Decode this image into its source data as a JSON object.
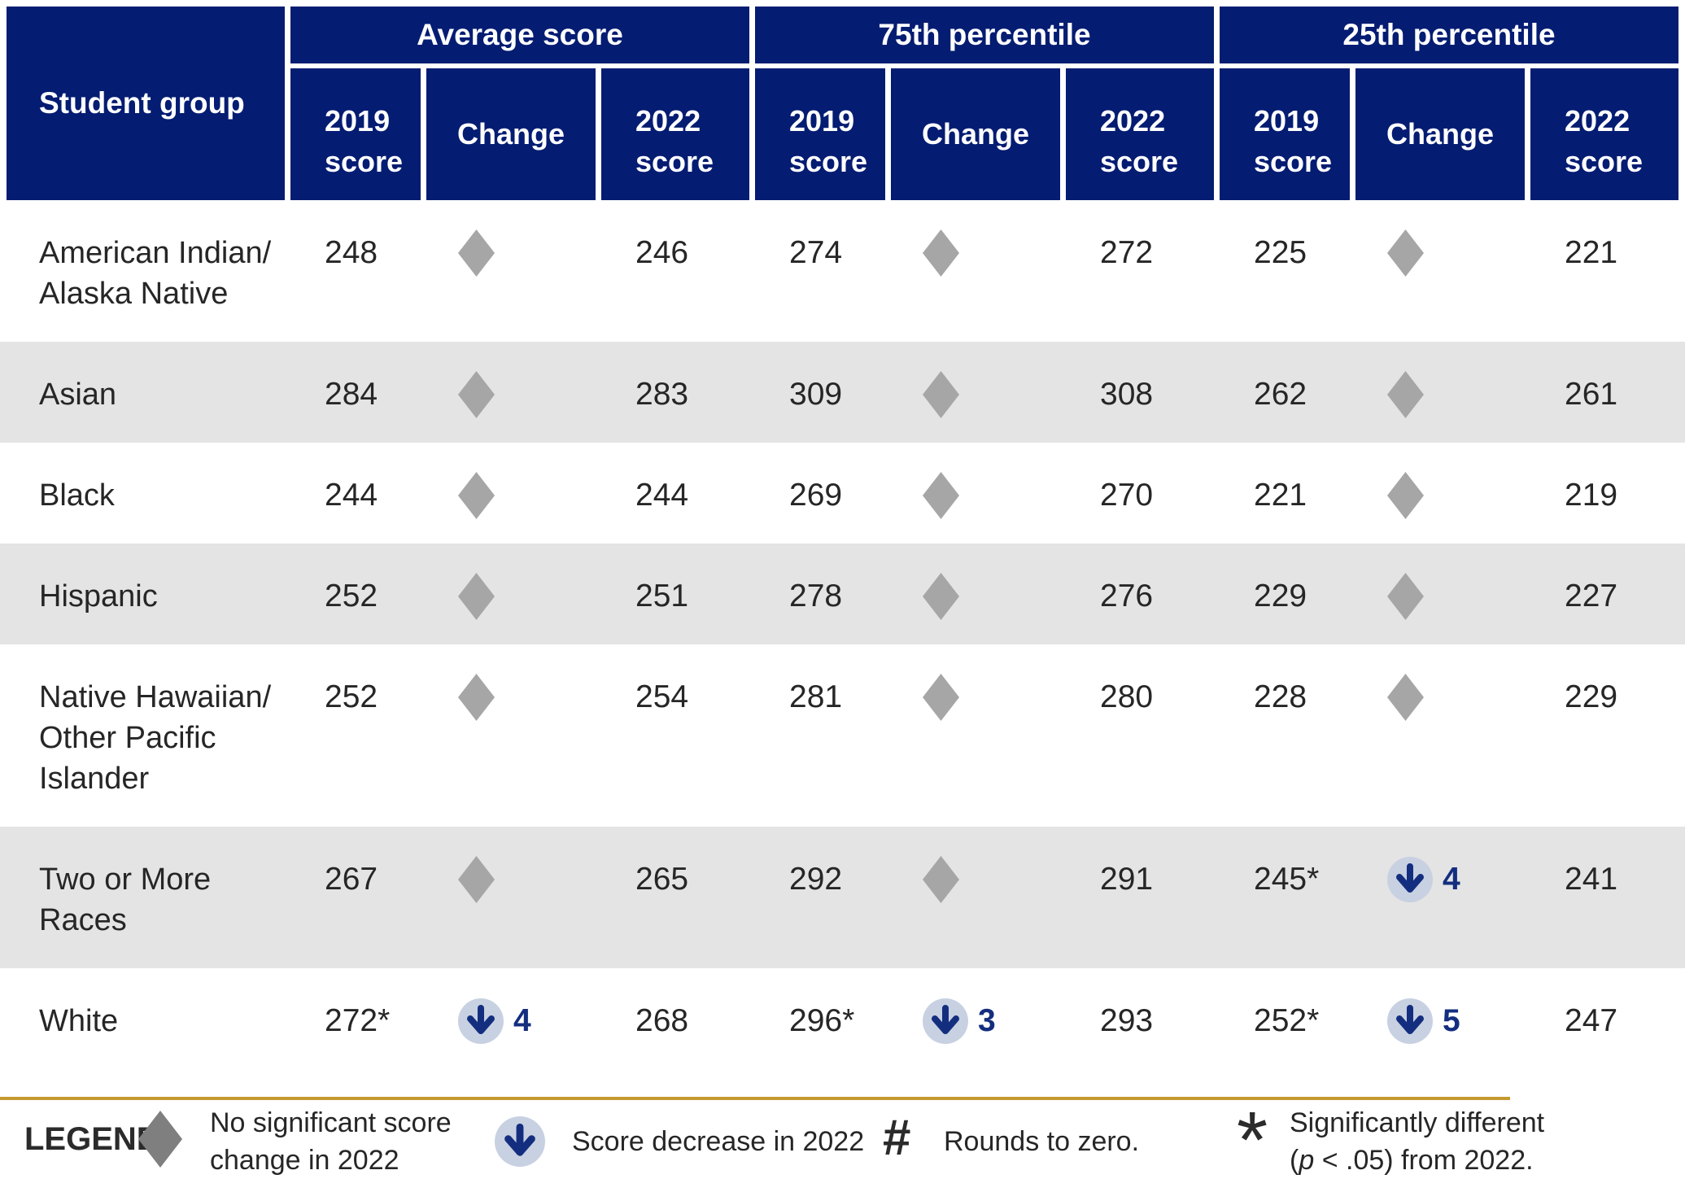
{
  "colors": {
    "header_navy": "#041c72",
    "row_alt_gray": "#e4e4e4",
    "diamond_gray": "#a6a6a6",
    "legend_diamond_gray": "#7f7f7f",
    "arrow_circle_blue": "#c8d1e2",
    "arrow_navy": "#142e7f",
    "gold_rule": "#c49a30",
    "text": "#262626"
  },
  "chart_data": {
    "type": "table",
    "row_header": "Student group",
    "column_groups": [
      "Average score",
      "75th percentile",
      "25th percentile"
    ],
    "sub_columns": [
      "2019 score",
      "Change",
      "2022 score"
    ],
    "change_encoding": "null = no significant change (gray diamond); negative integer = score decrease in 2022 (blue down arrow with magnitude)",
    "rows": [
      {
        "group": "American Indian/\nAlaska Native",
        "average": {
          "score_2019": "248",
          "change": null,
          "score_2022": "246"
        },
        "p75": {
          "score_2019": "274",
          "change": null,
          "score_2022": "272"
        },
        "p25": {
          "score_2019": "225",
          "change": null,
          "score_2022": "221"
        }
      },
      {
        "group": "Asian",
        "average": {
          "score_2019": "284",
          "change": null,
          "score_2022": "283"
        },
        "p75": {
          "score_2019": "309",
          "change": null,
          "score_2022": "308"
        },
        "p25": {
          "score_2019": "262",
          "change": null,
          "score_2022": "261"
        }
      },
      {
        "group": "Black",
        "average": {
          "score_2019": "244",
          "change": null,
          "score_2022": "244"
        },
        "p75": {
          "score_2019": "269",
          "change": null,
          "score_2022": "270"
        },
        "p25": {
          "score_2019": "221",
          "change": null,
          "score_2022": "219"
        }
      },
      {
        "group": "Hispanic",
        "average": {
          "score_2019": "252",
          "change": null,
          "score_2022": "251"
        },
        "p75": {
          "score_2019": "278",
          "change": null,
          "score_2022": "276"
        },
        "p25": {
          "score_2019": "229",
          "change": null,
          "score_2022": "227"
        }
      },
      {
        "group": "Native Hawaiian/\nOther Pacific\nIslander",
        "average": {
          "score_2019": "252",
          "change": null,
          "score_2022": "254"
        },
        "p75": {
          "score_2019": "281",
          "change": null,
          "score_2022": "280"
        },
        "p25": {
          "score_2019": "228",
          "change": null,
          "score_2022": "229"
        }
      },
      {
        "group": "Two or More\nRaces",
        "average": {
          "score_2019": "267",
          "change": null,
          "score_2022": "265"
        },
        "p75": {
          "score_2019": "292",
          "change": null,
          "score_2022": "291"
        },
        "p25": {
          "score_2019": "245*",
          "change": -4,
          "score_2022": "241"
        }
      },
      {
        "group": "White",
        "average": {
          "score_2019": "272*",
          "change": -4,
          "score_2022": "268"
        },
        "p75": {
          "score_2019": "296*",
          "change": -3,
          "score_2022": "293"
        },
        "p25": {
          "score_2019": "252*",
          "change": -5,
          "score_2022": "247"
        }
      }
    ]
  },
  "legend": {
    "title": "LEGEND",
    "items": [
      {
        "icon": "diamond",
        "text": "No significant score\nchange in 2022"
      },
      {
        "icon": "down-arrow",
        "text": "Score decrease in 2022"
      },
      {
        "icon": "hash",
        "symbol": "#",
        "text": "Rounds to zero."
      },
      {
        "icon": "asterisk",
        "symbol": "*",
        "line1": "Significantly different",
        "line2_pre": "(",
        "line2_italic": "p",
        "line2_post": " < .05) from 2022."
      }
    ]
  }
}
